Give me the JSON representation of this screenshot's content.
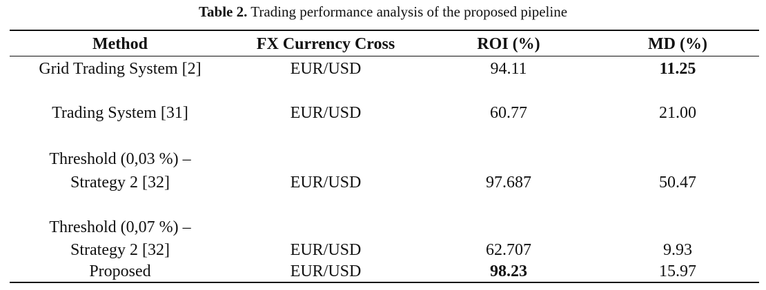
{
  "caption": {
    "label": "Table 2.",
    "text": "Trading performance analysis of the proposed pipeline"
  },
  "table": {
    "headers": [
      "Method",
      "FX Currency Cross",
      "ROI (%)",
      "MD (%)"
    ],
    "rows": [
      {
        "method": "Grid Trading System [2]",
        "cross": "EUR/USD",
        "roi": "94.11",
        "md": "11.25"
      },
      {
        "method": "Trading System [31]",
        "cross": "EUR/USD",
        "roi": "60.77",
        "md": "21.00"
      },
      {
        "method_line1": "Threshold (0,03 %) –",
        "method_line2": "Strategy 2 [32]",
        "cross": "EUR/USD",
        "roi": "97.687",
        "md": "50.47"
      },
      {
        "method_line1": "Threshold (0,07 %) –",
        "method_line2": "Strategy 2 [32]",
        "cross": "EUR/USD",
        "roi": "62.707",
        "md": "9.93"
      },
      {
        "method": "Proposed",
        "cross": "EUR/USD",
        "roi": "98.23",
        "md": "15.97"
      }
    ]
  }
}
